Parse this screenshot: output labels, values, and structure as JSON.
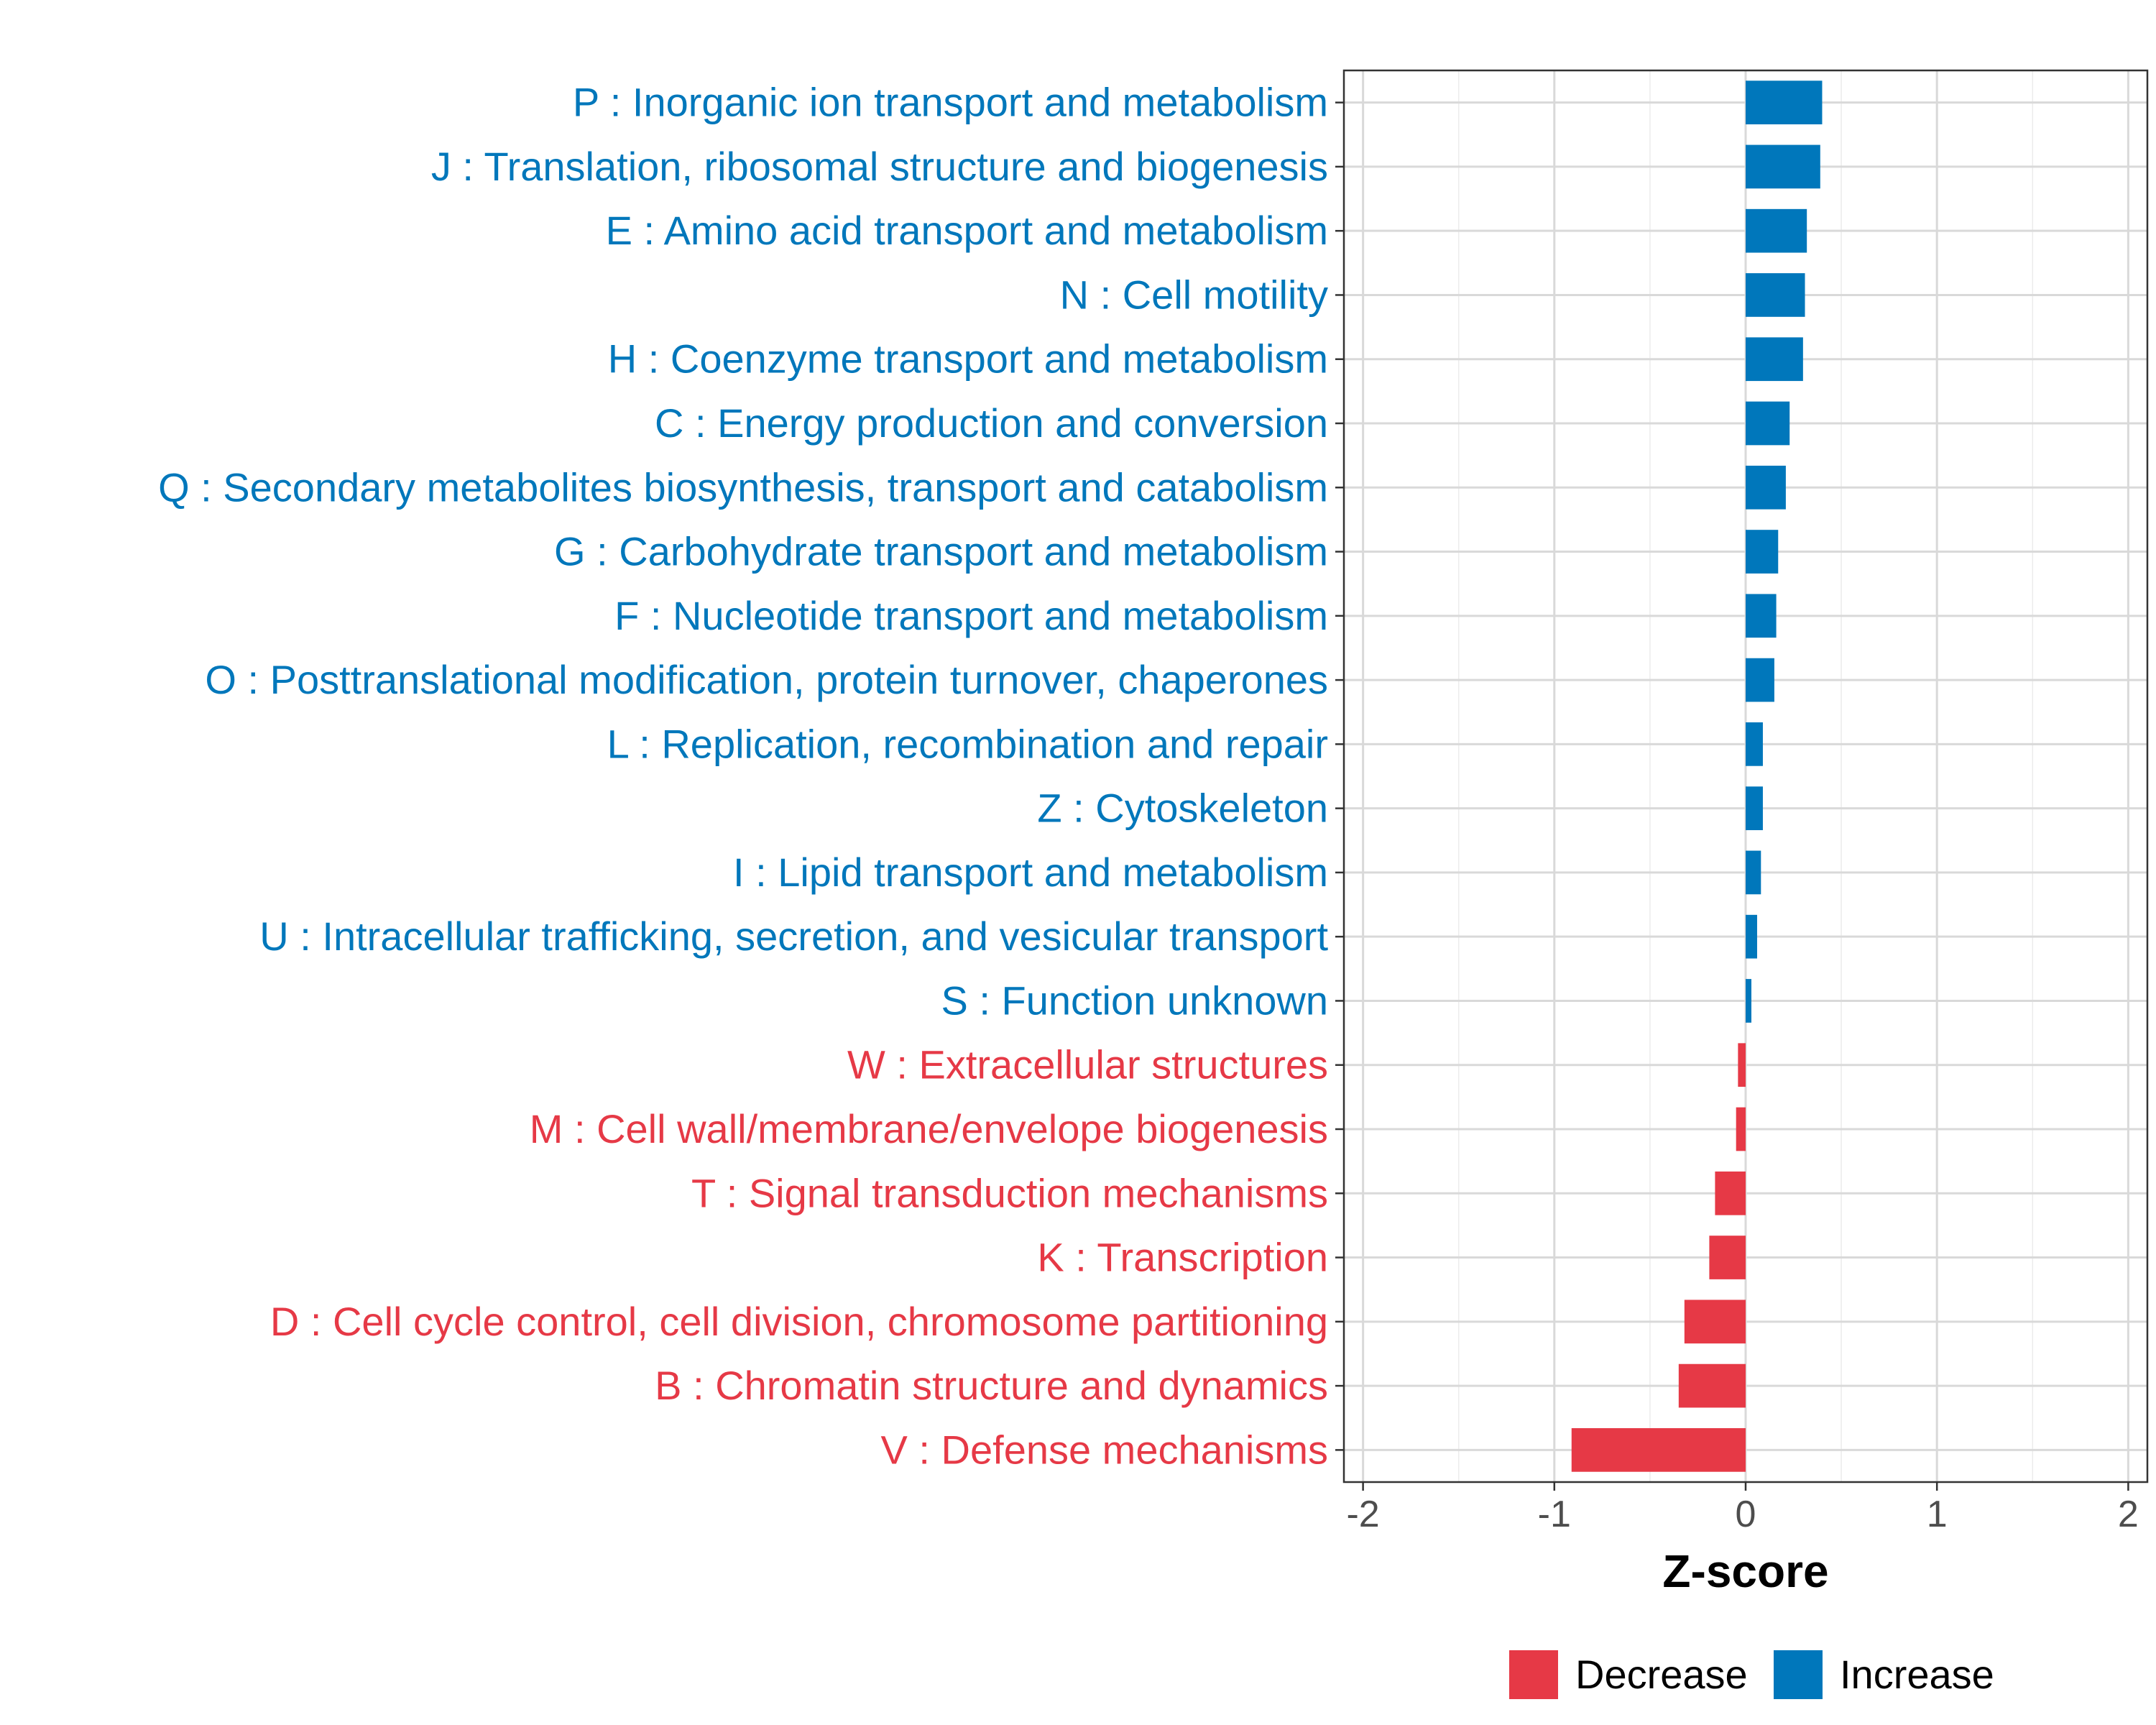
{
  "chart_data": {
    "type": "bar",
    "orientation": "horizontal",
    "title": "",
    "xlabel": "Z-score",
    "ylabel": "",
    "xlim": [
      -2.1,
      2.1
    ],
    "xticks": [
      -2,
      -1,
      0,
      1,
      2
    ],
    "xtick_labels": [
      "-2",
      "-1",
      "0",
      "1",
      "2"
    ],
    "grid": true,
    "legend_position": "bottom",
    "colors": {
      "Decrease": "#e63946",
      "Increase": "#0077bb"
    },
    "legend": [
      {
        "name": "Decrease",
        "label": "Decrease"
      },
      {
        "name": "Increase",
        "label": "Increase"
      }
    ],
    "categories": [
      "P : Inorganic ion transport and metabolism",
      "J : Translation, ribosomal structure and biogenesis",
      "E : Amino acid transport and metabolism",
      "N : Cell motility",
      "H : Coenzyme transport and metabolism",
      "C : Energy production and conversion",
      "Q : Secondary metabolites biosynthesis, transport and catabolism",
      "G : Carbohydrate transport and metabolism",
      "F : Nucleotide transport and metabolism",
      "O : Posttranslational modification, protein turnover, chaperones",
      "L : Replication, recombination and repair",
      "Z : Cytoskeleton",
      "I : Lipid transport and metabolism",
      "U : Intracellular trafficking, secretion, and vesicular transport",
      "S : Function unknown",
      "W : Extracellular structures",
      "M : Cell wall/membrane/envelope biogenesis",
      "T : Signal transduction mechanisms",
      "K : Transcription",
      "D : Cell cycle control, cell division, chromosome partitioning",
      "B : Chromatin structure and dynamics",
      "V : Defense mechanisms"
    ],
    "values": [
      0.4,
      0.39,
      0.32,
      0.31,
      0.3,
      0.23,
      0.21,
      0.17,
      0.16,
      0.15,
      0.09,
      0.09,
      0.08,
      0.06,
      0.03,
      -0.04,
      -0.05,
      -0.16,
      -0.19,
      -0.32,
      -0.35,
      -0.91
    ],
    "groups": [
      "Increase",
      "Increase",
      "Increase",
      "Increase",
      "Increase",
      "Increase",
      "Increase",
      "Increase",
      "Increase",
      "Increase",
      "Increase",
      "Increase",
      "Increase",
      "Increase",
      "Increase",
      "Decrease",
      "Decrease",
      "Decrease",
      "Decrease",
      "Decrease",
      "Decrease",
      "Decrease"
    ]
  }
}
